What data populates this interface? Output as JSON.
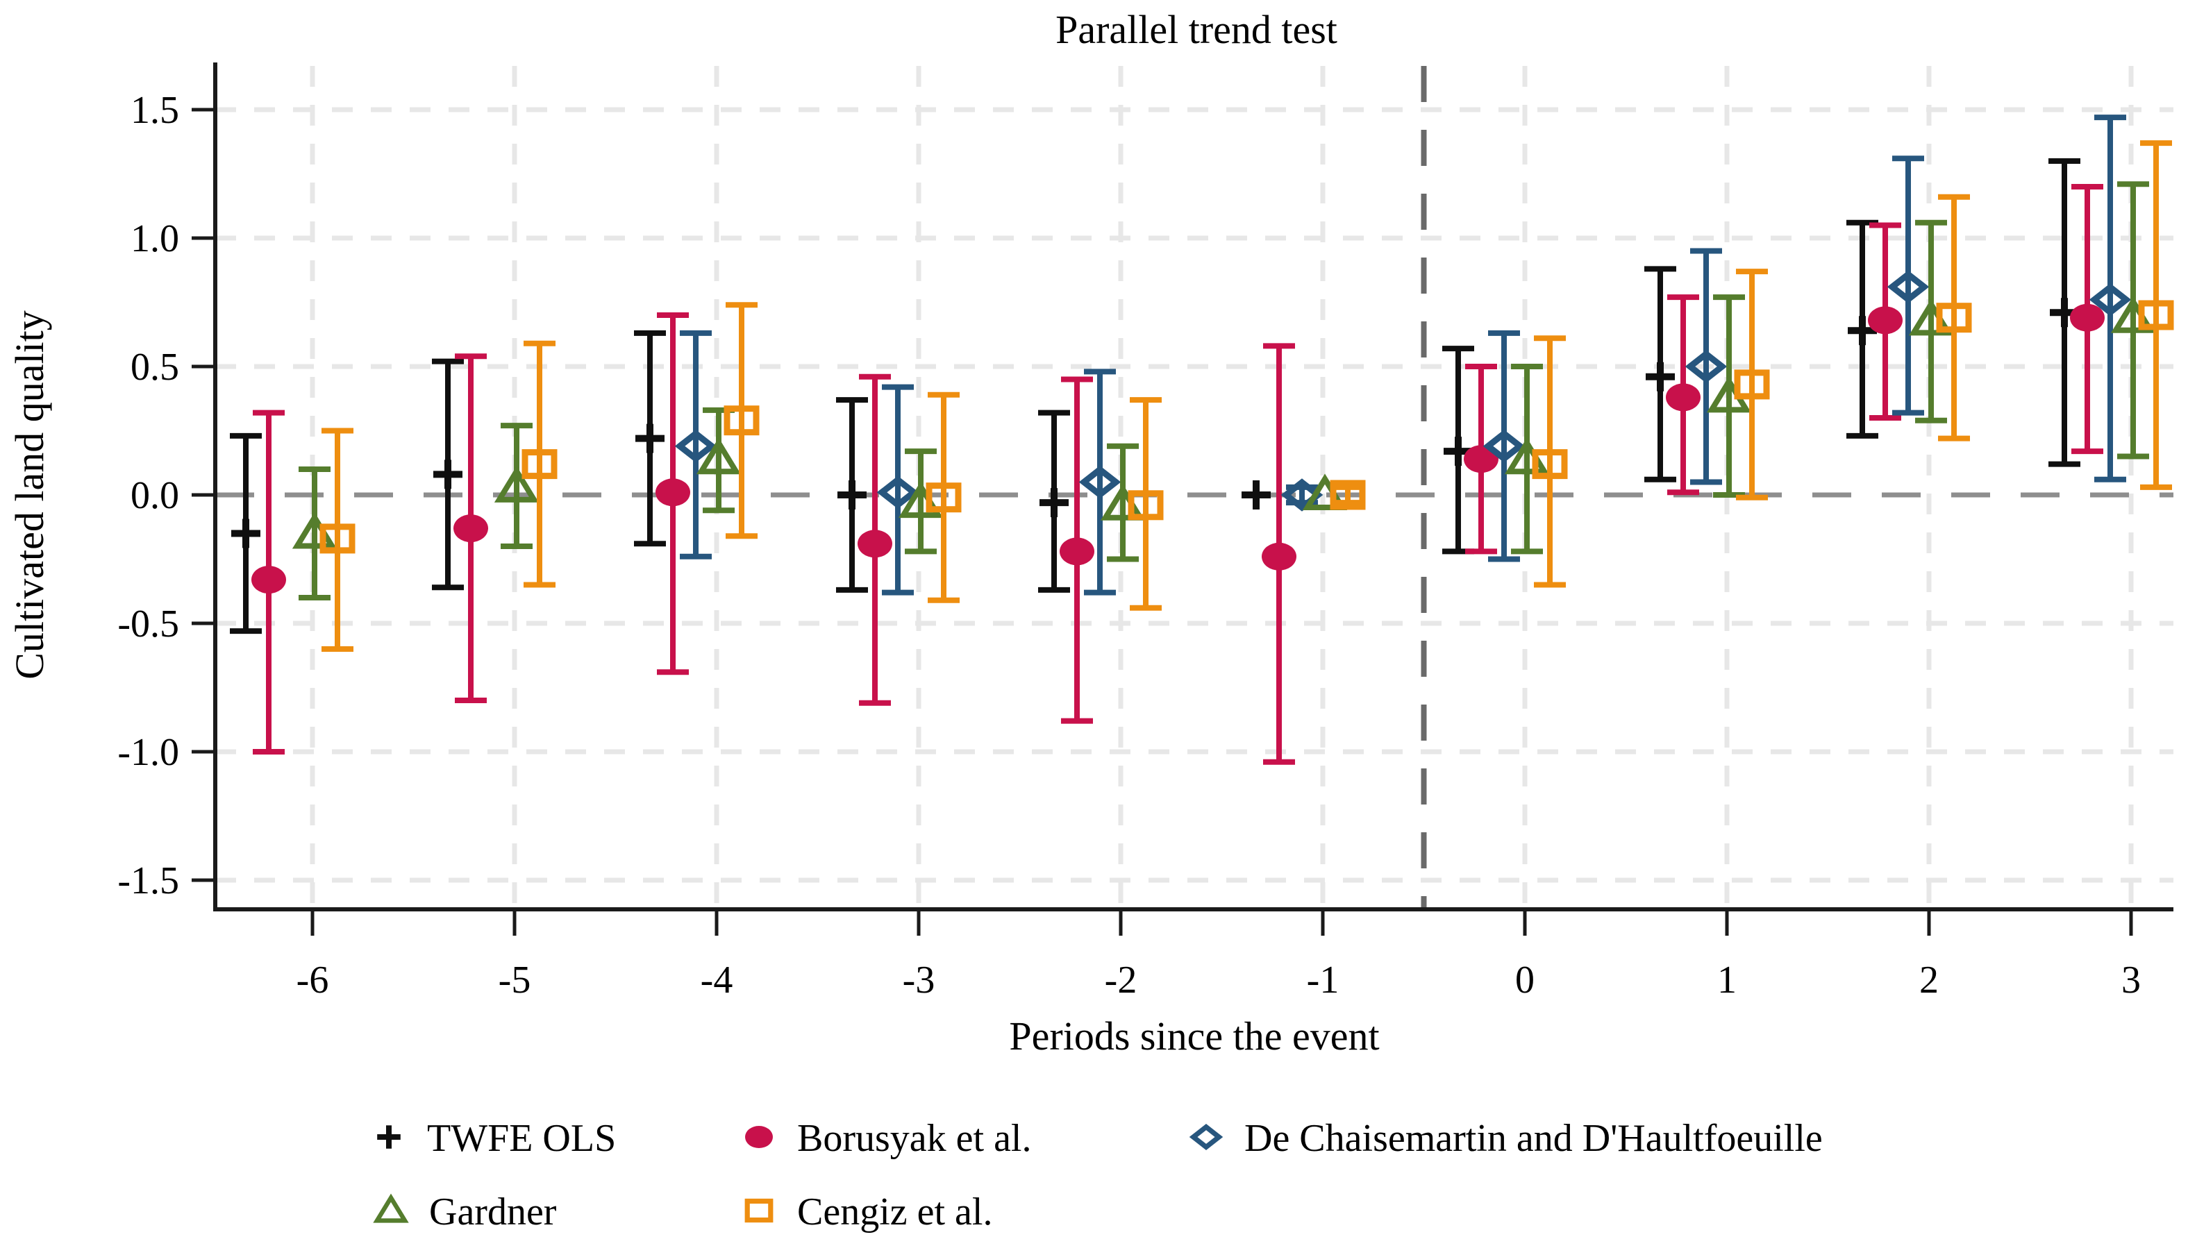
{
  "figure": {
    "title": "Parallel trend test",
    "xlabel": "Periods since the event",
    "ylabel": "Cultivated land quality"
  },
  "chart_data": {
    "type": "errorbar",
    "subtype": "event-study",
    "title": "Parallel trend test",
    "xlabel": "Periods since the event",
    "ylabel": "Cultivated land quality",
    "grid": true,
    "legend_position": "bottom",
    "x_tick_labels": [
      "-6",
      "-5",
      "-4",
      "-3",
      "-2",
      "-1",
      "0",
      "1",
      "2",
      "3"
    ],
    "y_tick_labels": [
      "1.5",
      "1.0",
      "0.5",
      "0.0",
      "-0.5",
      "-1.0",
      "-1.5"
    ],
    "y_tick_values": [
      1.5,
      1.0,
      0.5,
      0.0,
      -0.5,
      -1.0,
      -1.5
    ],
    "ylim": [
      -1.7,
      1.62
    ],
    "xlim": [
      -6.5,
      3.2
    ],
    "zero_line_y": 0,
    "event_line_x": -0.5,
    "periods": [
      -6,
      -5,
      -4,
      -3,
      -2,
      -1,
      0,
      1,
      2,
      3
    ],
    "series": [
      {
        "name": "TWFE OLS",
        "marker": "plus",
        "color": "#0f0f0f",
        "est": [
          -0.15,
          0.08,
          0.22,
          0.0,
          -0.03,
          0.0,
          0.17,
          0.46,
          0.64,
          0.71
        ],
        "lo": [
          -0.53,
          -0.36,
          -0.19,
          -0.37,
          -0.37,
          null,
          -0.22,
          0.06,
          0.23,
          0.12
        ],
        "hi": [
          0.23,
          0.52,
          0.63,
          0.37,
          0.32,
          null,
          0.57,
          0.88,
          1.06,
          1.3
        ]
      },
      {
        "name": "Borusyak et al.",
        "marker": "circle",
        "color": "#c8114b",
        "est": [
          -0.33,
          -0.13,
          0.01,
          -0.19,
          -0.22,
          -0.24,
          0.14,
          0.38,
          0.68,
          0.69
        ],
        "lo": [
          -1.0,
          -0.8,
          -0.69,
          -0.81,
          -0.88,
          -1.04,
          -0.22,
          0.01,
          0.3,
          0.17
        ],
        "hi": [
          0.32,
          0.54,
          0.7,
          0.46,
          0.45,
          0.58,
          0.5,
          0.77,
          1.05,
          1.2
        ]
      },
      {
        "name": "De Chaisemartin and D'Haultfoeuille",
        "marker": "diamond",
        "color": "#27567e",
        "est": [
          null,
          null,
          0.19,
          0.01,
          0.05,
          0.0,
          0.19,
          0.5,
          0.81,
          0.76
        ],
        "lo": [
          null,
          null,
          -0.24,
          -0.38,
          -0.38,
          -0.03,
          -0.25,
          0.05,
          0.32,
          0.06
        ],
        "hi": [
          null,
          null,
          0.63,
          0.42,
          0.48,
          0.03,
          0.63,
          0.95,
          1.31,
          1.47
        ]
      },
      {
        "name": "Gardner",
        "marker": "triangle",
        "color": "#557d2d",
        "est": [
          -0.15,
          0.03,
          0.14,
          -0.03,
          -0.04,
          0.0,
          0.14,
          0.38,
          0.68,
          0.69
        ],
        "lo": [
          -0.4,
          -0.2,
          -0.06,
          -0.22,
          -0.25,
          null,
          -0.22,
          0.0,
          0.29,
          0.15
        ],
        "hi": [
          0.1,
          0.27,
          0.33,
          0.17,
          0.19,
          null,
          0.5,
          0.77,
          1.06,
          1.21
        ]
      },
      {
        "name": "Cengiz et al.",
        "marker": "square",
        "color": "#ee8e10",
        "est": [
          -0.17,
          0.12,
          0.29,
          -0.01,
          -0.04,
          0.0,
          0.12,
          0.43,
          0.69,
          0.7
        ],
        "lo": [
          -0.6,
          -0.35,
          -0.16,
          -0.41,
          -0.44,
          -0.03,
          -0.35,
          -0.01,
          0.22,
          0.03
        ],
        "hi": [
          0.25,
          0.59,
          0.74,
          0.39,
          0.37,
          0.03,
          0.61,
          0.87,
          1.16,
          1.37
        ]
      }
    ],
    "legend_layout": [
      {
        "series": 0,
        "row": 0,
        "x": 560
      },
      {
        "series": 1,
        "row": 0,
        "x": 1093
      },
      {
        "series": 2,
        "row": 0,
        "x": 1737
      },
      {
        "series": 3,
        "row": 1,
        "x": 563
      },
      {
        "series": 4,
        "row": 1,
        "x": 1093
      }
    ]
  },
  "colors": {
    "background": "#ffffff",
    "axis": "#1a1a1a",
    "grid_light": "#e7e7e7",
    "zero_line": "#8e8e8e",
    "event_line": "#6a6a6a",
    "twfe": "#0f0f0f",
    "borusyak": "#c8114b",
    "de_chaisemartin": "#27567e",
    "gardner": "#557d2d",
    "cengiz": "#ee8e10"
  }
}
